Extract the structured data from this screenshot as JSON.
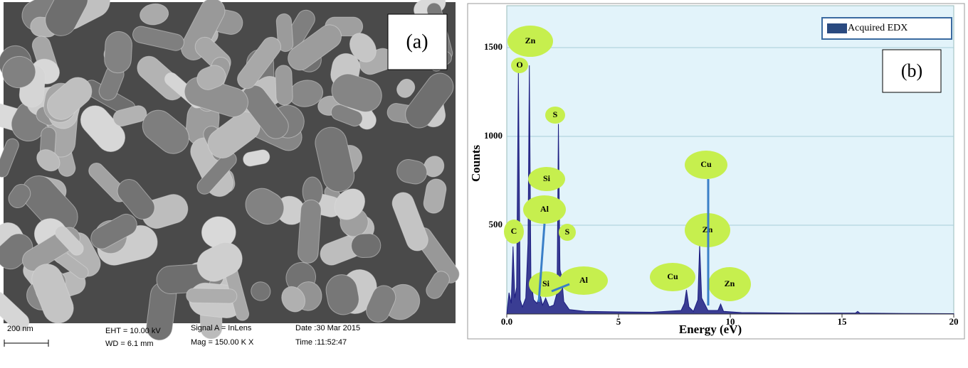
{
  "sem_panel": {
    "label": "(a)",
    "scale_bar": "200 nm",
    "info": [
      "EHT = 10.00 kV",
      "WD = 6.1 mm",
      "Signal A = InLens",
      "Mag = 150.00 K X",
      "Date :30 Mar 2015",
      "Time :11:52:47"
    ]
  },
  "chart_data": {
    "type": "line",
    "panel_label": "(b)",
    "x_label": "Energy (eV)",
    "y_label": "Counts",
    "xlim": [
      0,
      20
    ],
    "xticks": [
      {
        "value": 0,
        "label": "0.0"
      },
      5,
      10,
      15,
      20
    ],
    "ylim": [
      0,
      1736
    ],
    "yticks": [
      500,
      1000,
      1500
    ],
    "grid": true,
    "legend": "upper right",
    "x": [
      0,
      0.1,
      0.2,
      0.28,
      0.36,
      0.44,
      0.52,
      0.6,
      0.7,
      0.85,
      0.95,
      1.01,
      1.08,
      1.2,
      1.35,
      1.49,
      1.6,
      1.74,
      1.9,
      2.1,
      2.25,
      2.31,
      2.38,
      2.46,
      2.55,
      2.8,
      3.5,
      5,
      6.5,
      7.8,
      7.95,
      8.04,
      8.15,
      8.35,
      8.55,
      8.63,
      8.72,
      9.0,
      9.45,
      9.57,
      9.7,
      10.5,
      13,
      15.6,
      15.7,
      15.8,
      18,
      20
    ],
    "series": [
      {
        "name": "Acquired EDX",
        "color": "#1c1c80",
        "values": [
          0,
          120,
          60,
          380,
          90,
          150,
          1370,
          80,
          40,
          90,
          400,
          1400,
          200,
          80,
          60,
          110,
          50,
          90,
          40,
          50,
          120,
          1070,
          250,
          210,
          70,
          25,
          15,
          12,
          10,
          20,
          60,
          136,
          40,
          15,
          80,
          388,
          90,
          20,
          20,
          56,
          15,
          8,
          5,
          5,
          15,
          5,
          3,
          2
        ]
      }
    ],
    "annotations": [
      "Zn",
      "O",
      "S",
      "Si",
      "Al",
      "C",
      "S",
      "Cu",
      "Zn",
      "Cu",
      "Zn",
      "Si",
      "Al"
    ]
  }
}
